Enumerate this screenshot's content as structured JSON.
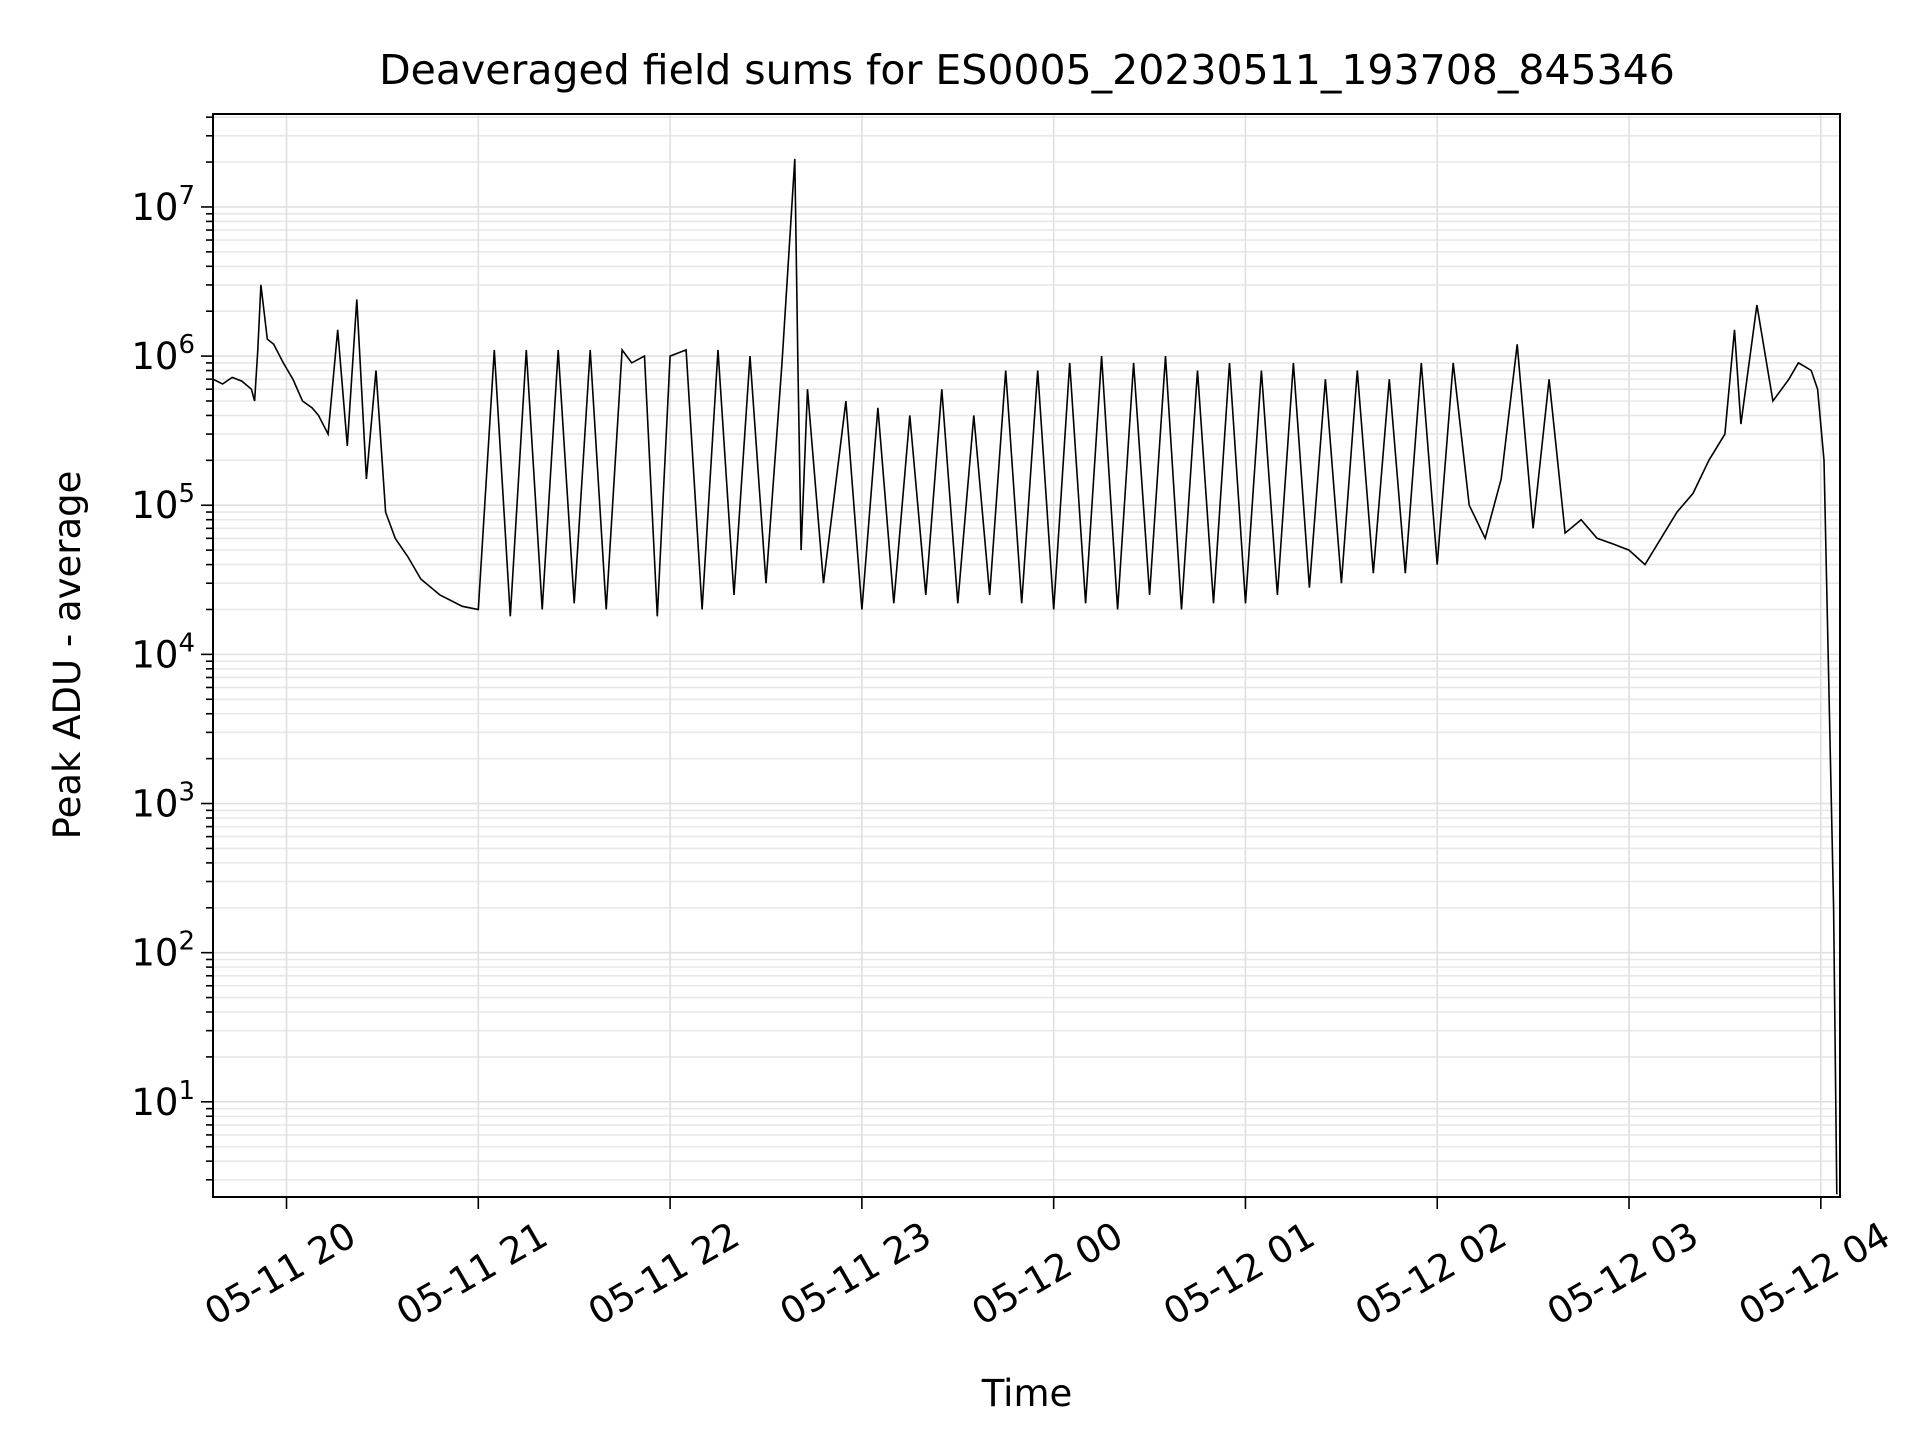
{
  "chart_data": {
    "type": "line",
    "title": "Deaveraged field sums for ES0005_20230511_193708_845346",
    "xlabel": "Time",
    "ylabel": "Peak ADU - average",
    "x_tick_labels": [
      "05-11 20",
      "05-11 21",
      "05-11 22",
      "05-11 23",
      "05-12 00",
      "05-12 01",
      "05-12 02",
      "05-12 03",
      "05-12 04"
    ],
    "x_ticks": [
      "2023-05-11 20:00",
      "2023-05-11 21:00",
      "2023-05-11 22:00",
      "2023-05-11 23:00",
      "2023-05-12 00:00",
      "2023-05-12 01:00",
      "2023-05-12 02:00",
      "2023-05-12 03:00",
      "2023-05-12 04:00"
    ],
    "xlim": [
      "2023-05-11 19:37",
      "2023-05-12 04:06"
    ],
    "y_scale": "log",
    "y_tick_labels": [
      {
        "base": "10",
        "exp": "1",
        "value": 10
      },
      {
        "base": "10",
        "exp": "2",
        "value": 100
      },
      {
        "base": "10",
        "exp": "3",
        "value": 1000
      },
      {
        "base": "10",
        "exp": "4",
        "value": 10000
      },
      {
        "base": "10",
        "exp": "5",
        "value": 100000
      },
      {
        "base": "10",
        "exp": "6",
        "value": 1000000
      },
      {
        "base": "10",
        "exp": "7",
        "value": 10000000
      }
    ],
    "ylim": [
      2.3,
      42000000
    ],
    "grid": true,
    "line_color": "#000000",
    "series": [
      {
        "x": [
          "2023-05-11 19:37",
          "2023-05-11 19:40",
          "2023-05-11 19:43",
          "2023-05-11 19:46",
          "2023-05-11 19:49",
          "2023-05-11 19:50",
          "2023-05-11 19:51",
          "2023-05-11 19:52",
          "2023-05-11 19:54",
          "2023-05-11 19:56",
          "2023-05-11 19:59",
          "2023-05-11 20:02",
          "2023-05-11 20:05",
          "2023-05-11 20:08",
          "2023-05-11 20:10",
          "2023-05-11 20:13",
          "2023-05-11 20:16",
          "2023-05-11 20:19",
          "2023-05-11 20:22",
          "2023-05-11 20:25",
          "2023-05-11 20:28",
          "2023-05-11 20:31",
          "2023-05-11 20:34",
          "2023-05-11 20:38",
          "2023-05-11 20:42",
          "2023-05-11 20:48",
          "2023-05-11 20:55",
          "2023-05-11 21:00",
          "2023-05-11 21:05",
          "2023-05-11 21:10",
          "2023-05-11 21:15",
          "2023-05-11 21:20",
          "2023-05-11 21:25",
          "2023-05-11 21:30",
          "2023-05-11 21:35",
          "2023-05-11 21:40",
          "2023-05-11 21:45",
          "2023-05-11 21:48",
          "2023-05-11 21:52",
          "2023-05-11 21:56",
          "2023-05-11 22:00",
          "2023-05-11 22:05",
          "2023-05-11 22:10",
          "2023-05-11 22:15",
          "2023-05-11 22:20",
          "2023-05-11 22:25",
          "2023-05-11 22:30",
          "2023-05-11 22:35",
          "2023-05-11 22:39",
          "2023-05-11 22:40",
          "2023-05-11 22:41",
          "2023-05-11 22:43",
          "2023-05-11 22:48",
          "2023-05-11 22:55",
          "2023-05-11 23:00",
          "2023-05-11 23:05",
          "2023-05-11 23:10",
          "2023-05-11 23:15",
          "2023-05-11 23:20",
          "2023-05-11 23:25",
          "2023-05-11 23:30",
          "2023-05-11 23:35",
          "2023-05-11 23:40",
          "2023-05-11 23:45",
          "2023-05-11 23:50",
          "2023-05-11 23:55",
          "2023-05-12 00:00",
          "2023-05-12 00:05",
          "2023-05-12 00:10",
          "2023-05-12 00:15",
          "2023-05-12 00:20",
          "2023-05-12 00:25",
          "2023-05-12 00:30",
          "2023-05-12 00:35",
          "2023-05-12 00:40",
          "2023-05-12 00:45",
          "2023-05-12 00:50",
          "2023-05-12 00:55",
          "2023-05-12 01:00",
          "2023-05-12 01:05",
          "2023-05-12 01:10",
          "2023-05-12 01:15",
          "2023-05-12 01:20",
          "2023-05-12 01:25",
          "2023-05-12 01:30",
          "2023-05-12 01:35",
          "2023-05-12 01:40",
          "2023-05-12 01:45",
          "2023-05-12 01:50",
          "2023-05-12 01:55",
          "2023-05-12 02:00",
          "2023-05-12 02:05",
          "2023-05-12 02:10",
          "2023-05-12 02:15",
          "2023-05-12 02:20",
          "2023-05-12 02:25",
          "2023-05-12 02:30",
          "2023-05-12 02:35",
          "2023-05-12 02:40",
          "2023-05-12 02:45",
          "2023-05-12 02:50",
          "2023-05-12 02:55",
          "2023-05-12 03:00",
          "2023-05-12 03:05",
          "2023-05-12 03:10",
          "2023-05-12 03:15",
          "2023-05-12 03:20",
          "2023-05-12 03:25",
          "2023-05-12 03:30",
          "2023-05-12 03:33",
          "2023-05-12 03:35",
          "2023-05-12 03:40",
          "2023-05-12 03:45",
          "2023-05-12 03:50",
          "2023-05-12 03:53",
          "2023-05-12 03:55",
          "2023-05-12 03:57",
          "2023-05-12 03:59",
          "2023-05-12 04:01",
          "2023-05-12 04:02",
          "2023-05-12 04:03",
          "2023-05-12 04:04",
          "2023-05-12 04:05",
          "2023-05-12 04:05"
        ],
        "y": [
          700000,
          650000,
          720000,
          680000,
          600000,
          500000,
          1100000,
          3000000,
          1300000,
          1200000,
          900000,
          700000,
          500000,
          450000,
          400000,
          300000,
          1500000,
          250000,
          2400000,
          150000,
          800000,
          90000,
          60000,
          45000,
          32000,
          25000,
          21000,
          20000,
          1100000,
          18000,
          1100000,
          20000,
          1100000,
          22000,
          1100000,
          20000,
          1100000,
          900000,
          1000000,
          18000,
          1000000,
          1100000,
          20000,
          1100000,
          25000,
          1000000,
          30000,
          900000,
          21000000,
          800000,
          50000,
          600000,
          30000,
          500000,
          20000,
          450000,
          22000,
          400000,
          25000,
          600000,
          22000,
          400000,
          25000,
          800000,
          22000,
          800000,
          20000,
          900000,
          22000,
          1000000,
          20000,
          900000,
          25000,
          1000000,
          20000,
          800000,
          22000,
          900000,
          22000,
          800000,
          25000,
          900000,
          28000,
          700000,
          30000,
          800000,
          35000,
          700000,
          35000,
          900000,
          40000,
          900000,
          100000,
          60000,
          150000,
          1200000,
          70000,
          700000,
          65000,
          80000,
          60000,
          55000,
          50000,
          40000,
          60000,
          90000,
          120000,
          200000,
          300000,
          1500000,
          350000,
          2200000,
          500000,
          700000,
          900000,
          850000,
          800000,
          600000,
          200000,
          20000,
          2000,
          200,
          2.4,
          2.4
        ]
      }
    ]
  }
}
